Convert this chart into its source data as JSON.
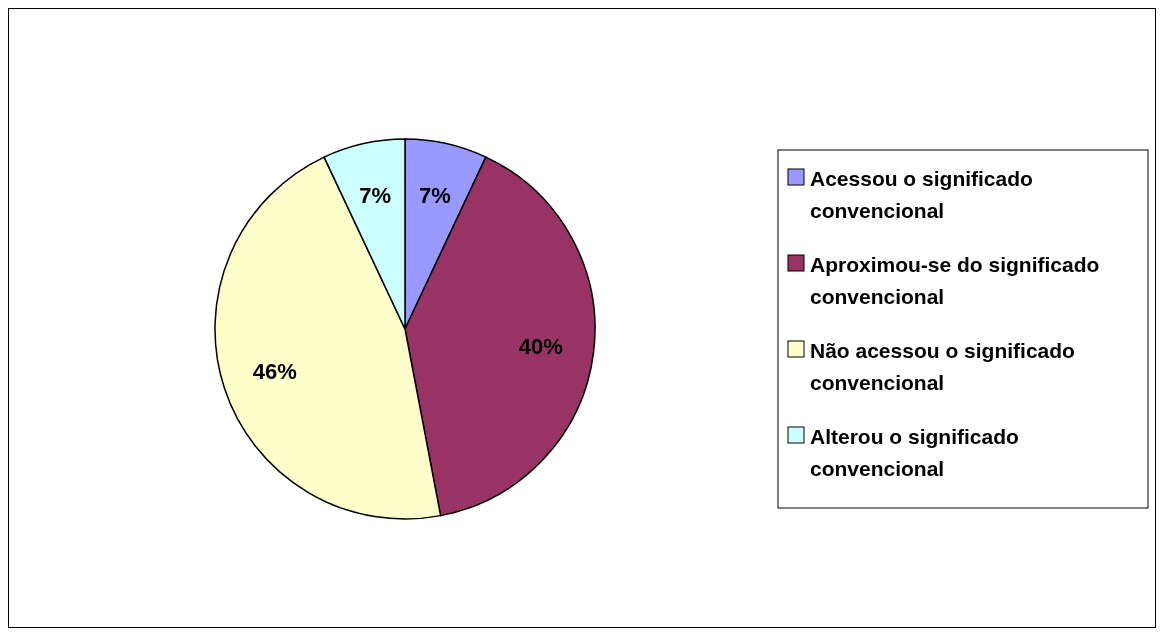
{
  "chart_data": {
    "type": "pie",
    "categories": [
      "Acessou o significado convencional",
      "Aproximou-se do significado convencional",
      "Não acessou o significado convencional",
      "Alterou o significado convencional"
    ],
    "values": [
      7,
      40,
      46,
      7
    ],
    "value_labels": [
      "7%",
      "40%",
      "46%",
      "7%"
    ],
    "colors": [
      "#9999ff",
      "#993366",
      "#ffffcc",
      "#ccffff"
    ],
    "legend": "right"
  }
}
